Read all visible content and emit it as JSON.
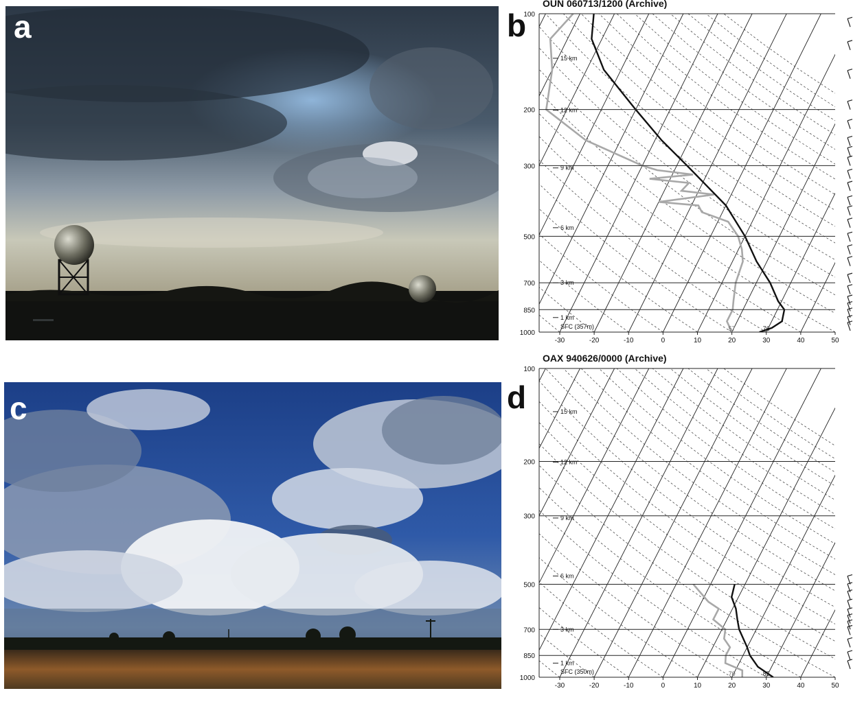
{
  "panels": {
    "a": {
      "letter": "a"
    },
    "b": {
      "letter": "b",
      "title": "OUN   060713/1200  (Archive)",
      "sfc_label": "SFC (357m)",
      "sfc_low": "57",
      "sfc_high": "76"
    },
    "c": {
      "letter": "c"
    },
    "d": {
      "letter": "d",
      "title": "OAX  940626/0000  (Archive)",
      "sfc_label": "SFC (350m)",
      "sfc_low": "70",
      "sfc_high": "85"
    }
  },
  "axes": {
    "pressure_levels": [
      100,
      200,
      300,
      500,
      700,
      850,
      1000
    ],
    "height_labels": [
      {
        "label": "15 km",
        "p": 138
      },
      {
        "label": "12 km",
        "p": 201
      },
      {
        "label": "9 km",
        "p": 305
      },
      {
        "label": "6 km",
        "p": 470
      },
      {
        "label": "3 km",
        "p": 700
      },
      {
        "label": "1 km",
        "p": 900
      }
    ],
    "temperature_ticks": [
      -30,
      -20,
      -10,
      0,
      10,
      20,
      30,
      40,
      50
    ]
  },
  "colors": {
    "temperature_trace": "#111111",
    "dewpoint_trace": "#a8a8a8",
    "grid": "#222222"
  },
  "profiles": {
    "b": {
      "temperature": [
        [
          1000,
          28
        ],
        [
          970,
          31
        ],
        [
          925,
          33
        ],
        [
          850,
          32
        ],
        [
          800,
          29
        ],
        [
          700,
          24
        ],
        [
          600,
          17
        ],
        [
          500,
          10
        ],
        [
          400,
          0
        ],
        [
          300,
          -17
        ],
        [
          250,
          -28
        ],
        [
          200,
          -40
        ],
        [
          150,
          -55
        ],
        [
          120,
          -63
        ],
        [
          100,
          -66
        ]
      ],
      "dewpoint": [
        [
          1000,
          20
        ],
        [
          925,
          17
        ],
        [
          850,
          17
        ],
        [
          800,
          16
        ],
        [
          700,
          14
        ],
        [
          600,
          13
        ],
        [
          550,
          11
        ],
        [
          500,
          8
        ],
        [
          450,
          3
        ],
        [
          420,
          -6
        ],
        [
          400,
          -8
        ],
        [
          390,
          -20
        ],
        [
          370,
          -5
        ],
        [
          360,
          -15
        ],
        [
          340,
          -14
        ],
        [
          330,
          -26
        ],
        [
          320,
          -14
        ],
        [
          310,
          -25
        ],
        [
          300,
          -30
        ],
        [
          250,
          -50
        ],
        [
          200,
          -66
        ],
        [
          150,
          -70
        ],
        [
          120,
          -75
        ],
        [
          100,
          -72
        ]
      ]
    },
    "d": {
      "temperature": [
        [
          1000,
          32
        ],
        [
          925,
          26
        ],
        [
          850,
          22
        ],
        [
          800,
          20
        ],
        [
          700,
          15
        ],
        [
          650,
          13
        ],
        [
          600,
          11
        ],
        [
          550,
          8
        ],
        [
          500,
          7
        ]
      ],
      "dewpoint": [
        [
          1000,
          23
        ],
        [
          950,
          22
        ],
        [
          900,
          16
        ],
        [
          850,
          15
        ],
        [
          800,
          15
        ],
        [
          750,
          12
        ],
        [
          700,
          11
        ],
        [
          650,
          6
        ],
        [
          600,
          6
        ],
        [
          570,
          2
        ],
        [
          500,
          -5
        ]
      ]
    }
  }
}
